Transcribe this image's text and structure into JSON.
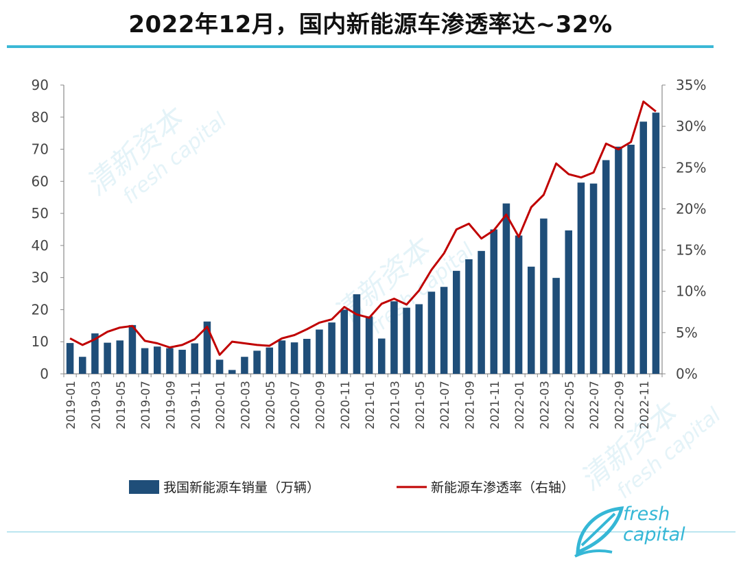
{
  "page": {
    "title": "2022年12月，国内新能源车渗透率达~32%",
    "watermark_cn": "清新资本",
    "watermark_en": "fresh capital",
    "logo_line1": "fresh",
    "logo_line2": "capital"
  },
  "colors": {
    "bar": "#1f4e79",
    "line": "#c00000",
    "accent": "#3bb8d6",
    "axis_text": "#444444"
  },
  "chart_data": {
    "type": "bar",
    "title": "2022年12月，国内新能源车渗透率达~32%",
    "categories": [
      "2019-01",
      "2019-02",
      "2019-03",
      "2019-04",
      "2019-05",
      "2019-06",
      "2019-07",
      "2019-08",
      "2019-09",
      "2019-10",
      "2019-11",
      "2019-12",
      "2020-01",
      "2020-02",
      "2020-03",
      "2020-04",
      "2020-05",
      "2020-06",
      "2020-07",
      "2020-08",
      "2020-09",
      "2020-10",
      "2020-11",
      "2020-12",
      "2021-01",
      "2021-02",
      "2021-03",
      "2021-04",
      "2021-05",
      "2021-06",
      "2021-07",
      "2021-08",
      "2021-09",
      "2021-10",
      "2021-11",
      "2021-12",
      "2022-01",
      "2022-02",
      "2022-03",
      "2022-04",
      "2022-05",
      "2022-06",
      "2022-07",
      "2022-08",
      "2022-09",
      "2022-10",
      "2022-11",
      "2022-12"
    ],
    "x_tick_labels": [
      "2019-01",
      "2019-03",
      "2019-05",
      "2019-07",
      "2019-09",
      "2019-11",
      "2020-01",
      "2020-03",
      "2020-05",
      "2020-07",
      "2020-09",
      "2020-11",
      "2021-01",
      "2021-03",
      "2021-05",
      "2021-07",
      "2021-09",
      "2021-11",
      "2022-01",
      "2022-03",
      "2022-05",
      "2022-07",
      "2022-09",
      "2022-11"
    ],
    "series": [
      {
        "name": "我国新能源车销量（万辆）",
        "type": "bar",
        "axis": "left",
        "values": [
          9.6,
          5.3,
          12.6,
          9.7,
          10.4,
          15.2,
          8.0,
          8.5,
          8.0,
          7.5,
          9.5,
          16.3,
          4.4,
          1.2,
          5.3,
          7.2,
          8.2,
          10.4,
          9.8,
          10.9,
          13.8,
          16.0,
          20.0,
          24.8,
          17.9,
          11.0,
          22.6,
          20.6,
          21.7,
          25.6,
          27.1,
          32.1,
          35.7,
          38.3,
          45.0,
          53.1,
          43.1,
          33.4,
          48.4,
          29.9,
          44.7,
          59.6,
          59.3,
          66.6,
          70.8,
          71.4,
          78.6,
          81.4
        ]
      },
      {
        "name": "新能源车渗透率（右轴）",
        "type": "line",
        "axis": "right",
        "values": [
          4.3,
          3.5,
          4.2,
          5.1,
          5.6,
          5.8,
          4.0,
          3.7,
          3.2,
          3.5,
          4.2,
          5.7,
          2.3,
          3.9,
          3.7,
          3.5,
          3.4,
          4.3,
          4.7,
          5.4,
          6.2,
          6.6,
          8.1,
          7.2,
          6.8,
          8.5,
          9.1,
          8.4,
          10.1,
          12.6,
          14.6,
          17.5,
          18.2,
          16.4,
          17.4,
          19.3,
          16.6,
          20.2,
          21.7,
          25.5,
          24.2,
          23.8,
          24.4,
          27.9,
          27.2,
          28.1,
          33.0,
          31.8
        ]
      }
    ],
    "y_left": {
      "ylim": [
        0,
        90
      ],
      "ticks": [
        0,
        10,
        20,
        30,
        40,
        50,
        60,
        70,
        80,
        90
      ]
    },
    "y_right": {
      "ylim": [
        0,
        35
      ],
      "ticks": [
        "0%",
        "5%",
        "10%",
        "15%",
        "20%",
        "25%",
        "30%",
        "35%"
      ]
    },
    "legend_position": "bottom",
    "grid": false
  }
}
